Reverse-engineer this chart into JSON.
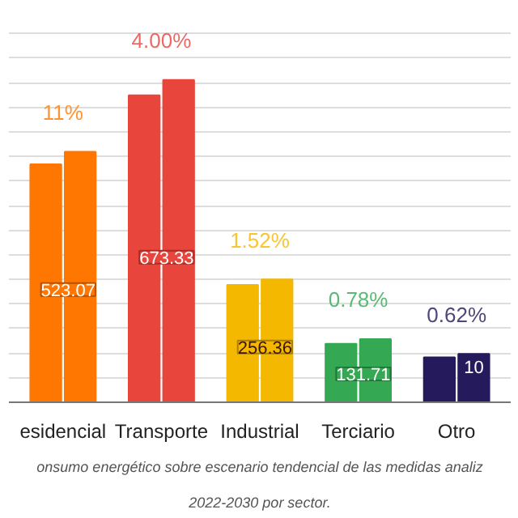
{
  "chart_data": {
    "type": "bar",
    "grid": "y",
    "tick_labels": "x",
    "categories": [
      "esidencial",
      "Transporte",
      "Industrial",
      "Terciario",
      "Otro"
    ],
    "series": [
      {
        "colors": [
          "#ff7700",
          "#e8453c",
          "#f5b800",
          "#34a853",
          "#241a5c"
        ],
        "values": [
          497,
          641,
          245,
          122,
          94
        ]
      },
      {
        "colors": [
          "#ff7700",
          "#e8453c",
          "#f5b800",
          "#34a853",
          "#241a5c"
        ],
        "values": [
          523.07,
          673.33,
          256.36,
          131.71,
          101
        ],
        "value_labels": [
          "523.07",
          "673.33",
          "256.36",
          "131.71",
          null
        ]
      }
    ],
    "annotations": [
      "11%",
      "4.00%",
      "1.52%",
      "0.78%",
      "0.62%",
      {
        "text": "10",
        "x": "Otro",
        "y": 101
      },
      "onsumo energético sobre escenario tendencial de las medidas analiz",
      "2022-2030 por sector."
    ]
  }
}
